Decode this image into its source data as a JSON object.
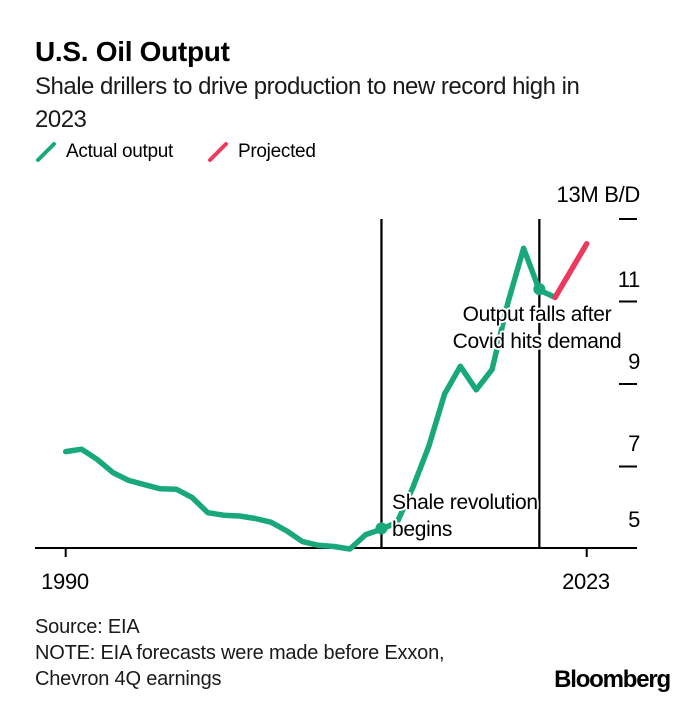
{
  "header": {
    "title": "U.S. Oil Output",
    "subtitle_line1": "Shale drillers to drive production to new record high in",
    "subtitle_line2": "2023"
  },
  "legend": {
    "items": [
      {
        "label": "Actual output",
        "color": "#18a87b",
        "icon": "green-slash-icon"
      },
      {
        "label": "Projected",
        "color": "#ec3a5e",
        "icon": "red-slash-icon"
      }
    ]
  },
  "chart_data": {
    "type": "line",
    "title": "U.S. Oil Output",
    "subtitle": "Shale drillers to drive production to new record high in 2023",
    "unit_label": "M B/D",
    "y_tick_labels": [
      "13M B/D",
      "11",
      "9",
      "7",
      "5"
    ],
    "x_tick_labels": [
      "1990",
      "2023"
    ],
    "x_tick_years": [
      1990,
      2023
    ],
    "y_dash_values": [
      13,
      11,
      9,
      7
    ],
    "x_range": [
      1990,
      2023
    ],
    "y_range": [
      5,
      13
    ],
    "grid": "right-side tick dashes only",
    "legend_position": "top-left",
    "event_line_years": [
      2010,
      2020
    ],
    "series": [
      {
        "name": "Actual output",
        "color": "#18a87b",
        "years": [
          1990,
          1991,
          1992,
          1993,
          1994,
          1995,
          1996,
          1997,
          1998,
          1999,
          2000,
          2001,
          2002,
          2003,
          2004,
          2005,
          2006,
          2007,
          2008,
          2009,
          2010,
          2011,
          2012,
          2013,
          2014,
          2015,
          2016,
          2017,
          2018,
          2019,
          2020,
          2021
        ],
        "values": [
          7.36,
          7.42,
          7.17,
          6.85,
          6.66,
          6.56,
          6.46,
          6.45,
          6.25,
          5.88,
          5.82,
          5.8,
          5.74,
          5.65,
          5.44,
          5.18,
          5.09,
          5.06,
          5.0,
          5.35,
          5.48,
          5.65,
          6.5,
          7.49,
          8.76,
          9.43,
          8.86,
          9.35,
          10.96,
          12.29,
          11.28,
          11.1
        ]
      },
      {
        "name": "Projected",
        "color": "#ec3a5e",
        "years": [
          2021,
          2023
        ],
        "values": [
          11.1,
          12.4
        ]
      }
    ],
    "markers": [
      {
        "year": 2010,
        "value": 5.5
      },
      {
        "year": 2020,
        "value": 11.3
      }
    ],
    "annotations": {
      "shale": {
        "line1": "Shale revolution",
        "line2": "begins"
      },
      "covid": {
        "line1": "Output falls after",
        "line2": "Covid hits demand"
      }
    }
  },
  "footer": {
    "source": "Source: EIA",
    "note_line1": "NOTE: EIA forecasts were made before Exxon,",
    "note_line2": "Chevron 4Q earnings",
    "brand": "Bloomberg"
  }
}
